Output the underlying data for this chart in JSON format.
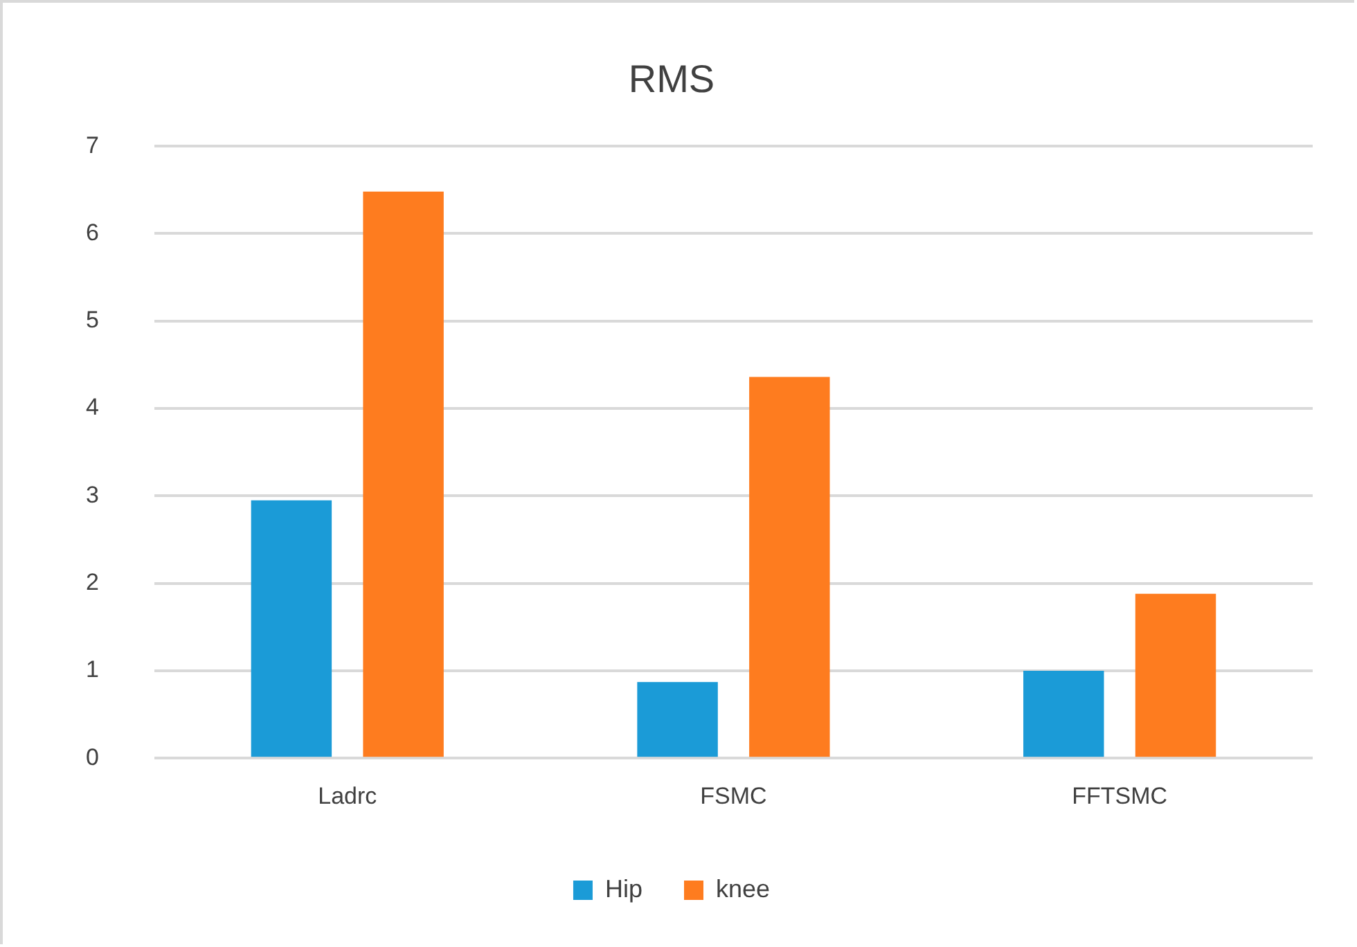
{
  "chart_data": {
    "type": "bar",
    "title": "RMS",
    "categories": [
      "Ladrc",
      "FSMC",
      "FFTSMC"
    ],
    "series": [
      {
        "name": "Hip",
        "color": "#1b9bd7",
        "values": [
          2.95,
          0.87,
          1.0
        ]
      },
      {
        "name": "knee",
        "color": "#fe7c1f",
        "values": [
          6.48,
          4.36,
          1.88
        ]
      }
    ],
    "ylim": [
      0,
      7
    ],
    "yticks": [
      0,
      1,
      2,
      3,
      4,
      5,
      6,
      7
    ],
    "grid": "y",
    "legend": "bottom"
  }
}
